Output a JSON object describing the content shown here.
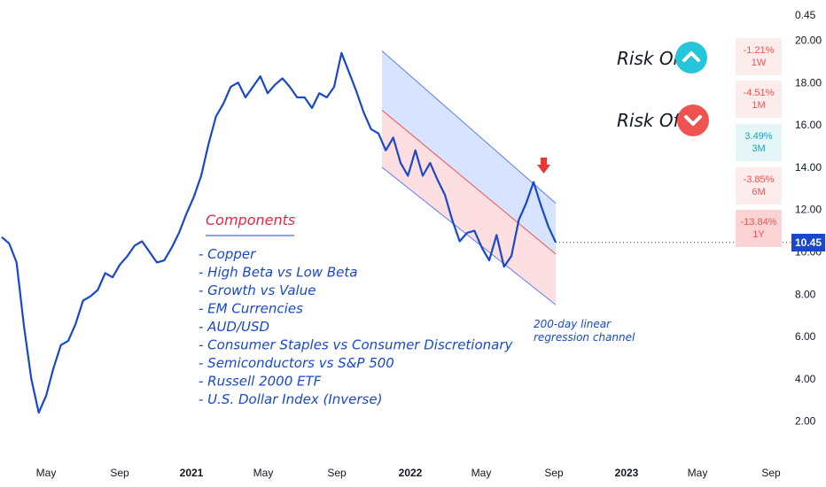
{
  "chart_data": {
    "type": "line",
    "x_tick_labels": [
      "May",
      "Sep",
      "2021",
      "May",
      "Sep",
      "2022",
      "May",
      "Sep",
      "2023",
      "May",
      "Sep"
    ],
    "y_tick_labels": [
      "0.45",
      "20.00",
      "18.00",
      "16.00",
      "14.00",
      "12.00",
      "10.00",
      "8.00",
      "6.00",
      "4.00",
      "2.00"
    ],
    "y_ticks": [
      20,
      18,
      16,
      14,
      12,
      10,
      8,
      6,
      4,
      2
    ],
    "ylim": [
      0.45,
      20.8
    ],
    "last_value_label": "10.45",
    "series": [
      {
        "color": "#1848cc",
        "values": [
          10.7,
          10.4,
          9.5,
          6.5,
          4.0,
          2.4,
          3.2,
          4.5,
          5.6,
          5.8,
          6.6,
          7.7,
          7.9,
          8.2,
          9.0,
          8.8,
          9.4,
          9.8,
          10.3,
          10.5,
          10.0,
          9.5,
          9.6,
          10.2,
          10.9,
          11.8,
          12.6,
          13.6,
          15.1,
          16.4,
          17.0,
          17.8,
          18.0,
          17.3,
          17.8,
          18.3,
          17.5,
          17.9,
          18.2,
          17.8,
          17.3,
          17.3,
          16.8,
          17.5,
          17.3,
          17.8,
          19.4,
          18.5,
          17.6,
          16.6,
          15.8,
          15.6,
          14.8,
          15.4,
          14.2,
          13.6,
          14.8,
          13.6,
          14.2,
          13.4,
          12.7,
          11.5,
          10.5,
          10.9,
          11.0,
          10.2,
          9.6,
          10.8,
          9.3,
          9.8,
          11.5,
          12.3,
          13.3,
          12.2,
          11.2,
          10.45
        ]
      }
    ],
    "channel": {
      "start_upper": 19.5,
      "start_middle": 16.7,
      "start_lower": 14.0,
      "end_upper": 12.3,
      "end_middle": 9.9,
      "end_lower": 7.5
    }
  },
  "annotations": {
    "components_title": "Components",
    "components": [
      "- Copper",
      "- High Beta vs Low Beta",
      "- Growth vs Value",
      "- EM Currencies",
      "- AUD/USD",
      "- Consumer Staples vs Consumer Discretionary",
      "- Semiconductors vs S&P 500",
      "- Russell 2000 ETF",
      "- U.S. Dollar Index (Inverse)"
    ],
    "channel_note_line1": "200-day linear",
    "channel_note_line2": "regression channel"
  },
  "risk": {
    "on_label": "Risk On",
    "off_label": "Risk Off",
    "on_color": "#26c6da",
    "off_color": "#ef5350"
  },
  "performance": [
    {
      "value": "-1.21%",
      "period": "1W",
      "color": "#ef5350",
      "bg": "#fdecec"
    },
    {
      "value": "-4.51%",
      "period": "1M",
      "color": "#ef5350",
      "bg": "#fdecec"
    },
    {
      "value": "3.49%",
      "period": "3M",
      "color": "#1aa3b5",
      "bg": "#e3f5f7"
    },
    {
      "value": "-3.85%",
      "period": "6M",
      "color": "#ef5350",
      "bg": "#fdecec"
    },
    {
      "value": "-13.84%",
      "period": "1Y",
      "color": "#ef5350",
      "bg": "#fbd3d2"
    }
  ]
}
